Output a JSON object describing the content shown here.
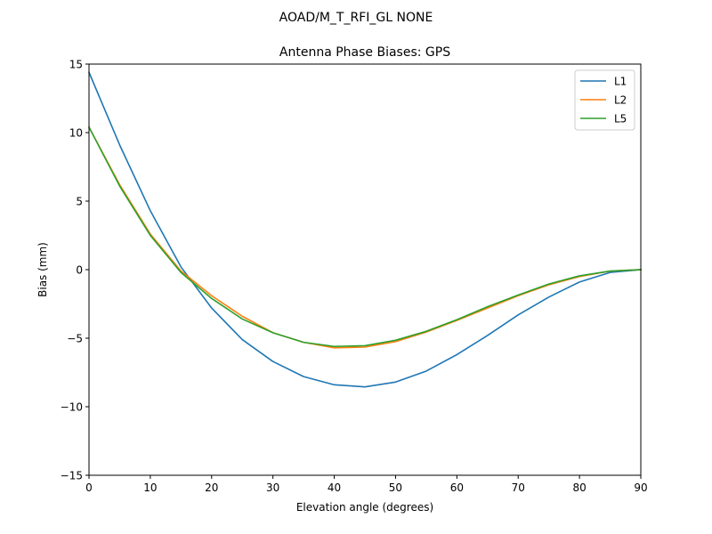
{
  "figure": {
    "suptitle": "AOAD/M_T_RFI_GL NONE"
  },
  "chart_data": {
    "type": "line",
    "title": "Antenna Phase Biases: GPS",
    "xlabel": "Elevation angle (degrees)",
    "ylabel": "Bias (mm)",
    "xlim": [
      0,
      90
    ],
    "ylim": [
      -15,
      15
    ],
    "xticks": [
      0,
      10,
      20,
      30,
      40,
      50,
      60,
      70,
      80,
      90
    ],
    "yticks": [
      -15,
      -10,
      -5,
      0,
      5,
      10,
      15
    ],
    "ytick_labels": [
      "−15",
      "−10",
      "−5",
      "0",
      "5",
      "10",
      "15"
    ],
    "grid": false,
    "legend_position": "top-right",
    "x": [
      0,
      5,
      10,
      15,
      20,
      25,
      30,
      35,
      40,
      45,
      50,
      55,
      60,
      65,
      70,
      75,
      80,
      85,
      90
    ],
    "series": [
      {
        "name": "L1",
        "color": "#1f77b4",
        "values": [
          14.4,
          9.1,
          4.3,
          0.2,
          -2.8,
          -5.1,
          -6.7,
          -7.8,
          -8.4,
          -8.55,
          -8.2,
          -7.4,
          -6.2,
          -4.8,
          -3.3,
          -2.0,
          -0.9,
          -0.2,
          0.0
        ]
      },
      {
        "name": "L2",
        "color": "#ff7f0e",
        "values": [
          10.4,
          6.2,
          2.6,
          -0.1,
          -1.9,
          -3.4,
          -4.6,
          -5.3,
          -5.7,
          -5.65,
          -5.25,
          -4.55,
          -3.7,
          -2.8,
          -1.9,
          -1.1,
          -0.5,
          -0.1,
          0.0
        ]
      },
      {
        "name": "L5",
        "color": "#2ca02c",
        "values": [
          10.4,
          6.1,
          2.5,
          -0.2,
          -2.1,
          -3.6,
          -4.6,
          -5.3,
          -5.6,
          -5.55,
          -5.15,
          -4.5,
          -3.65,
          -2.7,
          -1.85,
          -1.05,
          -0.45,
          -0.1,
          0.0
        ]
      }
    ]
  }
}
